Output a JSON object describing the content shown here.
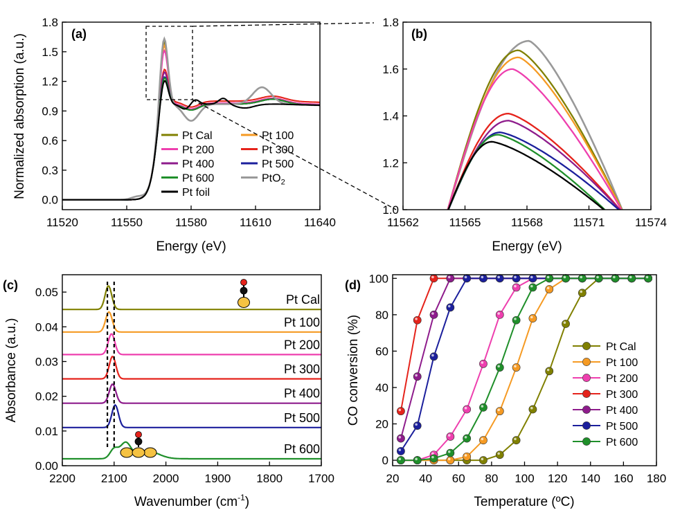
{
  "figure": {
    "panels": {
      "a": {
        "label": "(a)"
      },
      "b": {
        "label": "(b)"
      },
      "c": {
        "label": "(c)"
      },
      "d": {
        "label": "(d)"
      }
    }
  },
  "chart_data": [
    {
      "panel": "a",
      "type": "line",
      "title": "",
      "xlabel": "Energy (eV)",
      "ylabel": "Normalized absorption (a.u.)",
      "xlim": [
        11520,
        11640
      ],
      "ylim": [
        -0.1,
        1.8
      ],
      "xticks": [
        11520,
        11550,
        11580,
        11610,
        11640
      ],
      "yticks": [
        0.0,
        0.3,
        0.6,
        0.9,
        1.2,
        1.5,
        1.8
      ],
      "ytick_labels": [
        "0.0",
        "0.3",
        "0.6",
        "0.9",
        "1.2",
        "1.5",
        "1.8"
      ],
      "series": [
        {
          "name": "Pt Cal",
          "color": "#808000",
          "peak": 1.68,
          "post_level": 0.97
        },
        {
          "name": "Pt 100",
          "color": "#f59a23",
          "peak": 1.65,
          "post_level": 0.97
        },
        {
          "name": "Pt 200",
          "color": "#ee3fae",
          "peak": 1.6,
          "post_level": 0.98
        },
        {
          "name": "Pt 300",
          "color": "#e5231b",
          "peak": 1.41,
          "post_level": 1.0
        },
        {
          "name": "Pt 400",
          "color": "#8e1c8c",
          "peak": 1.38,
          "post_level": 0.97
        },
        {
          "name": "Pt 500",
          "color": "#1b1f9c",
          "peak": 1.33,
          "post_level": 0.97
        },
        {
          "name": "Pt 600",
          "color": "#1f8f2a",
          "peak": 1.32,
          "post_level": 0.97
        },
        {
          "name": "PtO2",
          "color": "#999999",
          "peak": 1.72,
          "post_level": 0.97
        },
        {
          "name": "Pt foil",
          "color": "#000000",
          "peak": 1.29,
          "post_level": 0.97
        }
      ],
      "legend_labels": [
        "Pt Cal",
        "Pt 100",
        "Pt 200",
        "Pt 300",
        "Pt 400",
        "Pt 500",
        "Pt 600",
        "PtO",
        "Pt foil"
      ],
      "legend_subscript": "2",
      "legend_location": "lower-center"
    },
    {
      "panel": "b",
      "type": "line",
      "title": "",
      "xlabel": "Energy (eV)",
      "ylabel": "",
      "xlim": [
        11562,
        11574
      ],
      "ylim": [
        1.0,
        1.8
      ],
      "xticks": [
        11562,
        11565,
        11568,
        11571,
        11574
      ],
      "yticks": [
        1.0,
        1.2,
        1.4,
        1.6,
        1.8
      ],
      "ytick_labels": [
        "1.0",
        "1.2",
        "1.4",
        "1.6",
        "1.8"
      ],
      "series": [
        {
          "name": "PtO2",
          "color": "#999999",
          "peak_x": 11568.1,
          "peak": 1.72
        },
        {
          "name": "Pt Cal",
          "color": "#808000",
          "peak_x": 11567.6,
          "peak": 1.68
        },
        {
          "name": "Pt 100",
          "color": "#f59a23",
          "peak_x": 11567.6,
          "peak": 1.65
        },
        {
          "name": "Pt 200",
          "color": "#ee3fae",
          "peak_x": 11567.3,
          "peak": 1.6
        },
        {
          "name": "Pt 300",
          "color": "#e5231b",
          "peak_x": 11567.1,
          "peak": 1.41
        },
        {
          "name": "Pt 400",
          "color": "#8e1c8c",
          "peak_x": 11567.1,
          "peak": 1.38
        },
        {
          "name": "Pt 500",
          "color": "#1b1f9c",
          "peak_x": 11566.7,
          "peak": 1.33
        },
        {
          "name": "Pt 600",
          "color": "#1f8f2a",
          "peak_x": 11566.6,
          "peak": 1.32
        },
        {
          "name": "Pt foil",
          "color": "#000000",
          "peak_x": 11566.3,
          "peak": 1.29
        }
      ]
    },
    {
      "panel": "c",
      "type": "line",
      "title": "",
      "xlabel": "Wavenumber (cm",
      "xlabel_sup": "-1",
      "xlabel_end": ")",
      "ylabel": "Absorbance (a.u.)",
      "xlim": [
        2200,
        1700
      ],
      "ylim": [
        0.0,
        0.055
      ],
      "xticks": [
        2200,
        2100,
        2000,
        1900,
        1800,
        1700
      ],
      "yticks": [
        0.0,
        0.01,
        0.02,
        0.03,
        0.04,
        0.05
      ],
      "ytick_labels": [
        "0.00",
        "0.01",
        "0.02",
        "0.03",
        "0.04",
        "0.05"
      ],
      "series": [
        {
          "name": "Pt Cal",
          "color": "#808000",
          "offset": 0.045,
          "peak_x": 2111,
          "peak_height": 0.0068
        },
        {
          "name": "Pt 100",
          "color": "#f59a23",
          "offset": 0.0385,
          "peak_x": 2110,
          "peak_height": 0.0058
        },
        {
          "name": "Pt 200",
          "color": "#ee3fae",
          "offset": 0.032,
          "peak_x": 2105,
          "peak_height": 0.006
        },
        {
          "name": "Pt 300",
          "color": "#e5231b",
          "offset": 0.025,
          "peak_x": 2103,
          "peak_height": 0.0065
        },
        {
          "name": "Pt 400",
          "color": "#8e1c8c",
          "offset": 0.018,
          "peak_x": 2103,
          "peak_height": 0.0055
        },
        {
          "name": "Pt 500",
          "color": "#1b1f9c",
          "offset": 0.011,
          "peak_x": 2098,
          "peak_height": 0.0065
        },
        {
          "name": "Pt 600",
          "color": "#1f8f2a",
          "offset": 0.002,
          "peak_x": 2080,
          "peak_height": 0.0045
        }
      ],
      "reference_lines": [
        2113,
        2100
      ]
    },
    {
      "panel": "d",
      "type": "line",
      "title": "",
      "xlabel": "Temperature (ºC)",
      "ylabel": "CO conversion (%)",
      "xlim": [
        20,
        180
      ],
      "ylim": [
        -3,
        102
      ],
      "xticks": [
        20,
        40,
        60,
        80,
        100,
        120,
        140,
        160,
        180
      ],
      "yticks": [
        0,
        20,
        40,
        60,
        80,
        100
      ],
      "ytick_labels": [
        "0",
        "20",
        "40",
        "60",
        "80",
        "100"
      ],
      "x": [
        25,
        35,
        45,
        55,
        65,
        75,
        85,
        95,
        105,
        115,
        125,
        135,
        145,
        155,
        165,
        175
      ],
      "series": [
        {
          "name": "Pt Cal",
          "color": "#808000",
          "values": [
            0,
            0,
            0,
            0,
            0,
            0,
            3,
            11,
            28,
            49,
            75,
            92,
            100,
            100,
            100,
            100
          ]
        },
        {
          "name": "Pt 100",
          "color": "#f59a23",
          "values": [
            0,
            0,
            0,
            0,
            2,
            11,
            27,
            51,
            78,
            94,
            100,
            100,
            100,
            100,
            100,
            100
          ]
        },
        {
          "name": "Pt 200",
          "color": "#ee3fae",
          "values": [
            0,
            0,
            3,
            13,
            28,
            53,
            80,
            95,
            100,
            100,
            100,
            100,
            100,
            100,
            100,
            100
          ]
        },
        {
          "name": "Pt 300",
          "color": "#e5231b",
          "values": [
            27,
            77,
            100,
            100,
            100,
            100,
            100,
            100,
            100,
            100,
            100,
            100,
            100,
            100,
            100,
            100
          ]
        },
        {
          "name": "Pt 400",
          "color": "#8e1c8c",
          "values": [
            12,
            46,
            80,
            100,
            100,
            100,
            100,
            100,
            100,
            100,
            100,
            100,
            100,
            100,
            100,
            100
          ]
        },
        {
          "name": "Pt 500",
          "color": "#1b1f9c",
          "values": [
            5,
            19,
            57,
            84,
            100,
            100,
            100,
            100,
            100,
            100,
            100,
            100,
            100,
            100,
            100,
            100
          ]
        },
        {
          "name": "Pt 600",
          "color": "#1f8f2a",
          "values": [
            0,
            0,
            1,
            4,
            12,
            29,
            51,
            77,
            95,
            100,
            100,
            100,
            100,
            100,
            100,
            100
          ]
        }
      ],
      "legend_location": "lower-right"
    }
  ]
}
